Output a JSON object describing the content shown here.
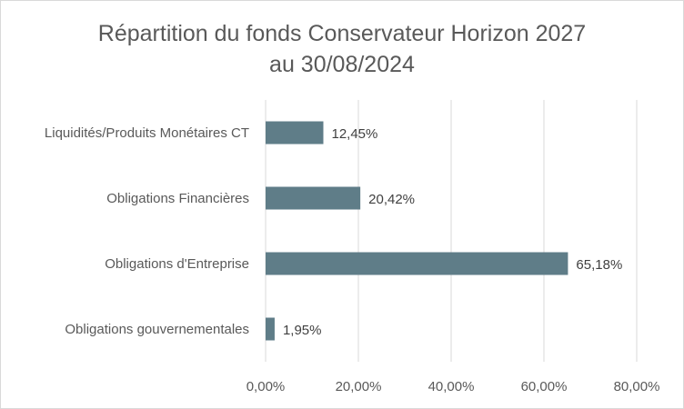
{
  "chart_data": {
    "type": "bar",
    "orientation": "horizontal",
    "title": "Répartition du fonds Conservateur Horizon 2027",
    "subtitle": "au 30/08/2024",
    "categories": [
      "Obligations gouvernementales",
      "Obligations d'Entreprise",
      "Obligations Financières",
      "Liquidités/Produits Monétaires CT"
    ],
    "values": [
      1.95,
      65.18,
      20.42,
      12.45
    ],
    "data_labels": [
      "1,95%",
      "65,18%",
      "20,42%",
      "12,45%"
    ],
    "xlim": [
      0,
      80
    ],
    "x_ticks": [
      0,
      20,
      40,
      60,
      80
    ],
    "x_tick_labels": [
      "0,00%",
      "20,00%",
      "40,00%",
      "60,00%",
      "80,00%"
    ],
    "bar_color": "#5f7d88",
    "grid": true,
    "legend": "none"
  }
}
